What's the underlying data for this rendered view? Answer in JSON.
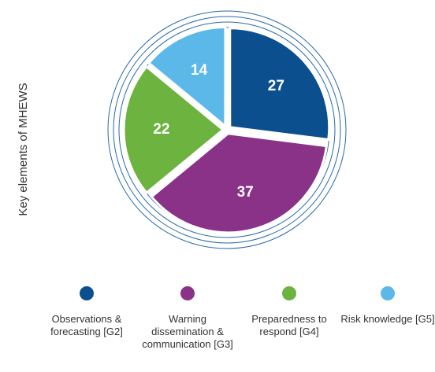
{
  "chart_data": {
    "type": "pie",
    "y_label": "Key elements of MHEWS",
    "categories": [
      "Observations & forecasting [G2]",
      "Warning dissemination & communication [G3]",
      "Preparedness to respond [G4]",
      "Risk knowledge [G5]"
    ],
    "values": [
      27,
      37,
      22,
      14
    ],
    "colors": [
      "#0b4f8e",
      "#8a3188",
      "#6cb33f",
      "#5cb8e8"
    ]
  }
}
